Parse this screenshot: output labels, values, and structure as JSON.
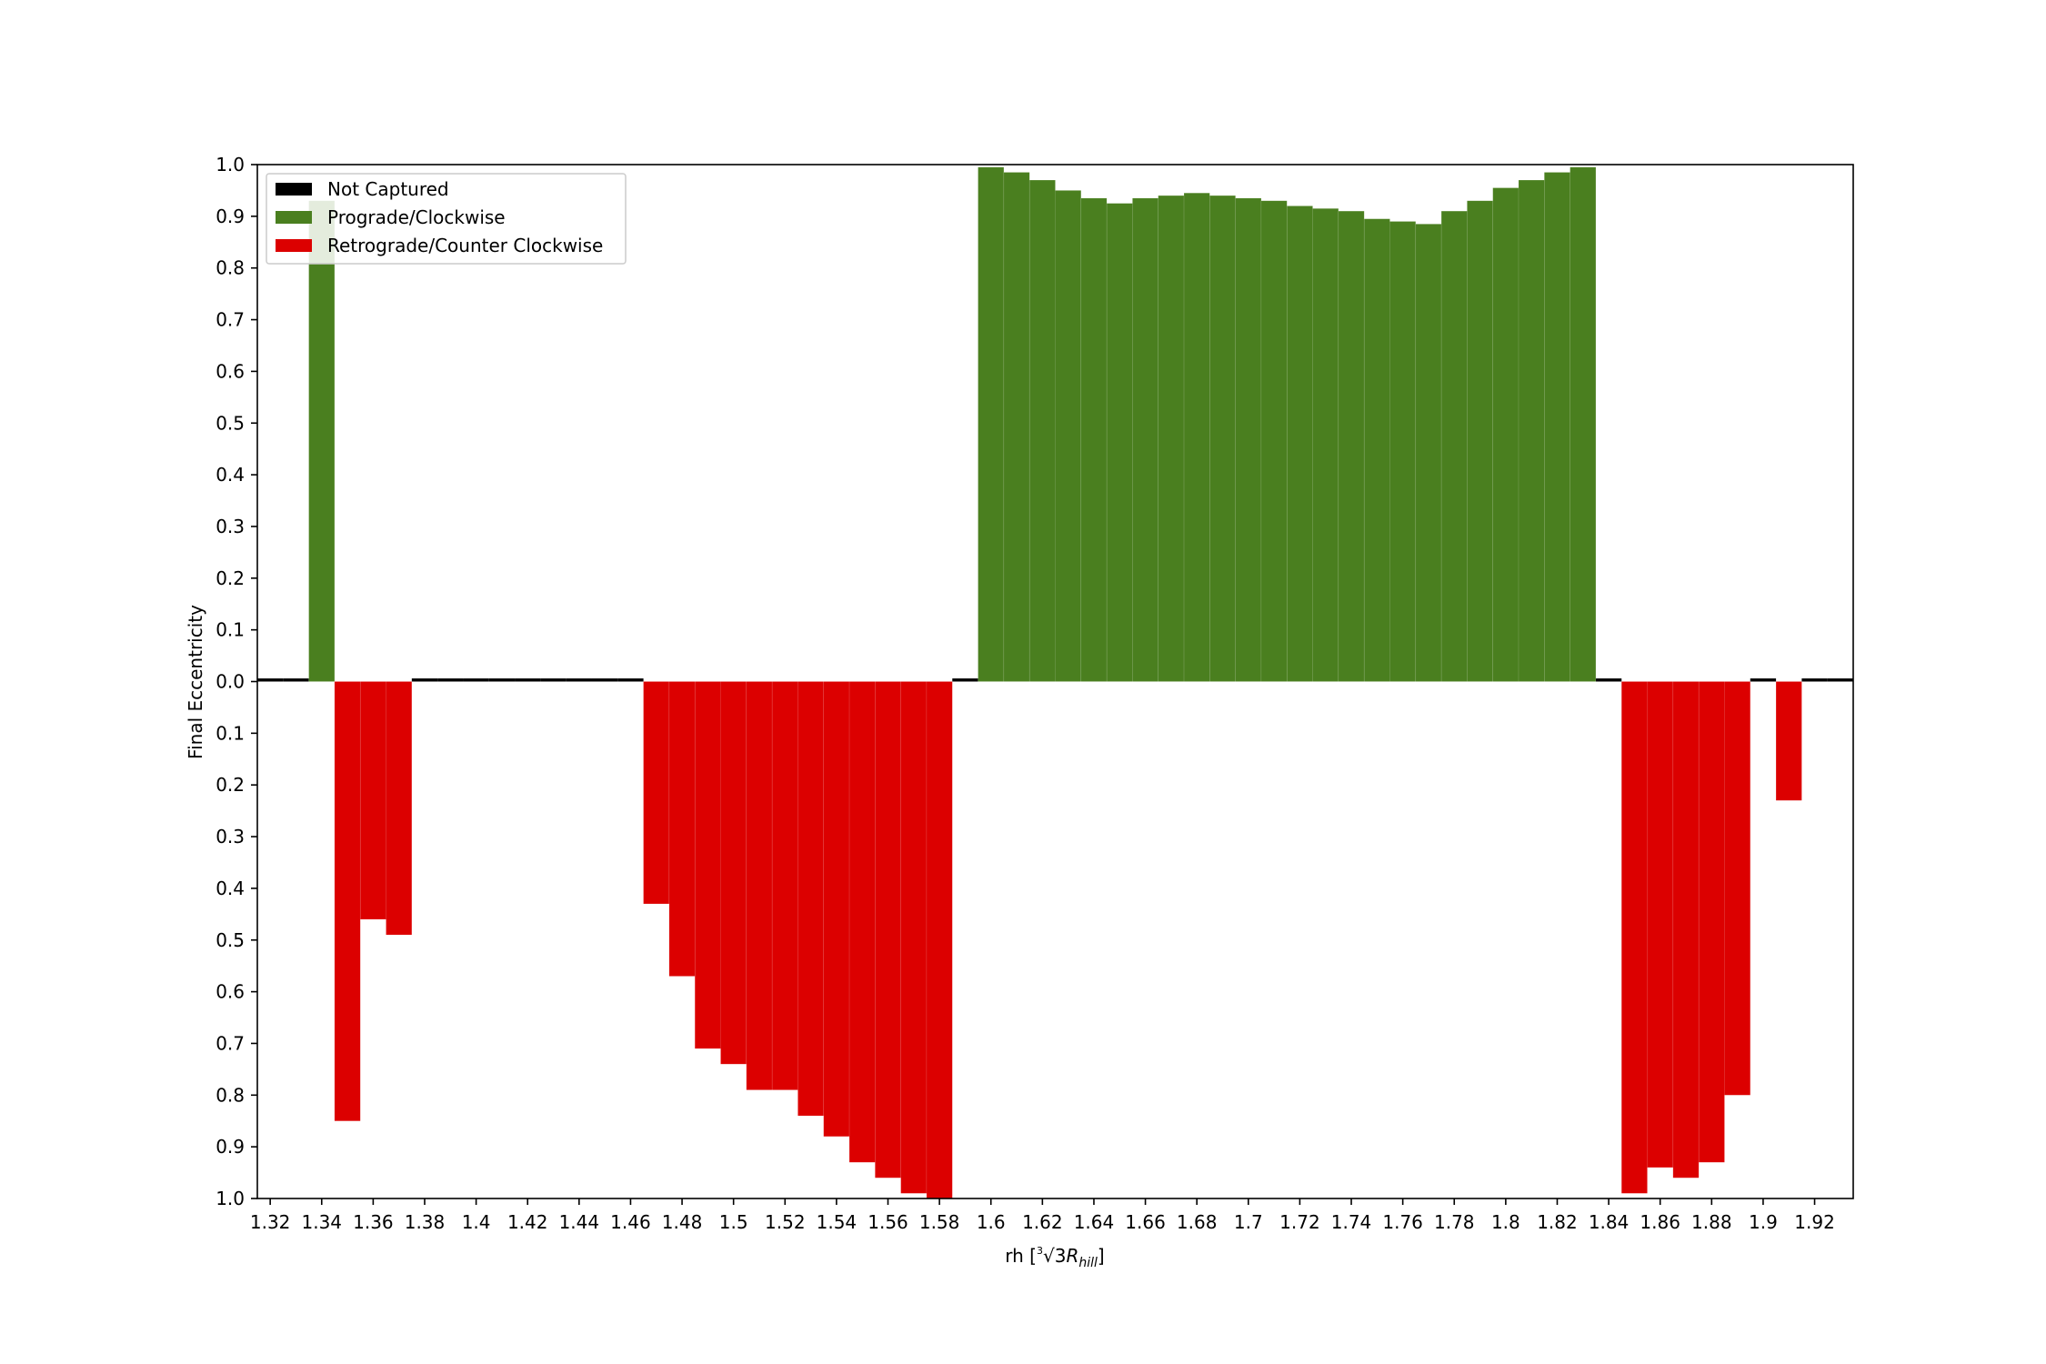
{
  "chart_data": {
    "type": "bar",
    "title": "",
    "xlabel_prefix": "rh [",
    "xlabel_root_index": "3",
    "xlabel_radical": "√",
    "xlabel_radicand": "3",
    "xlabel_var": "R",
    "xlabel_sub": "hill",
    "xlabel_suffix": "]",
    "ylabel": "Final Eccentricity",
    "xlim": [
      1.315,
      1.935
    ],
    "ylim": [
      -1.0,
      1.0
    ],
    "bar_width": 0.01,
    "x_ticks": [
      "1.32",
      "1.34",
      "1.36",
      "1.38",
      "1.4",
      "1.42",
      "1.44",
      "1.46",
      "1.48",
      "1.5",
      "1.52",
      "1.54",
      "1.56",
      "1.58",
      "1.6",
      "1.62",
      "1.64",
      "1.66",
      "1.68",
      "1.7",
      "1.72",
      "1.74",
      "1.76",
      "1.78",
      "1.8",
      "1.82",
      "1.84",
      "1.86",
      "1.88",
      "1.9",
      "1.92"
    ],
    "y_ticks": [
      {
        "value": 1.0,
        "label": "1.0"
      },
      {
        "value": 0.9,
        "label": "0.9"
      },
      {
        "value": 0.8,
        "label": "0.8"
      },
      {
        "value": 0.7,
        "label": "0.7"
      },
      {
        "value": 0.6,
        "label": "0.6"
      },
      {
        "value": 0.5,
        "label": "0.5"
      },
      {
        "value": 0.4,
        "label": "0.4"
      },
      {
        "value": 0.3,
        "label": "0.3"
      },
      {
        "value": 0.2,
        "label": "0.2"
      },
      {
        "value": 0.1,
        "label": "0.1"
      },
      {
        "value": 0.0,
        "label": "0.0"
      },
      {
        "value": -0.1,
        "label": "0.1"
      },
      {
        "value": -0.2,
        "label": "0.2"
      },
      {
        "value": -0.3,
        "label": "0.3"
      },
      {
        "value": -0.4,
        "label": "0.4"
      },
      {
        "value": -0.5,
        "label": "0.5"
      },
      {
        "value": -0.6,
        "label": "0.6"
      },
      {
        "value": -0.7,
        "label": "0.7"
      },
      {
        "value": -0.8,
        "label": "0.8"
      },
      {
        "value": -0.9,
        "label": "0.9"
      },
      {
        "value": -1.0,
        "label": "1.0"
      }
    ],
    "legend_position": "upper-left",
    "series": [
      {
        "name": "Not Captured",
        "color": "#000000",
        "x": [
          1.32,
          1.33,
          1.38,
          1.39,
          1.4,
          1.41,
          1.42,
          1.43,
          1.44,
          1.45,
          1.46,
          1.59,
          1.84,
          1.9,
          1.92,
          1.93
        ],
        "values": [
          0.006,
          0.006,
          0.006,
          0.006,
          0.006,
          0.006,
          0.006,
          0.006,
          0.006,
          0.006,
          0.006,
          0.006,
          0.006,
          0.006,
          0.006,
          0.006
        ]
      },
      {
        "name": "Prograde/Clockwise",
        "color": "#4a7f1f",
        "x": [
          1.34,
          1.6,
          1.61,
          1.62,
          1.63,
          1.64,
          1.65,
          1.66,
          1.67,
          1.68,
          1.69,
          1.7,
          1.71,
          1.72,
          1.73,
          1.74,
          1.75,
          1.76,
          1.77,
          1.78,
          1.79,
          1.8,
          1.81,
          1.82,
          1.83
        ],
        "values": [
          0.93,
          0.995,
          0.985,
          0.97,
          0.95,
          0.935,
          0.925,
          0.935,
          0.94,
          0.945,
          0.94,
          0.935,
          0.93,
          0.92,
          0.915,
          0.91,
          0.895,
          0.89,
          0.885,
          0.91,
          0.93,
          0.955,
          0.97,
          0.985,
          0.995
        ]
      },
      {
        "name": "Retrograde/Counter Clockwise",
        "color": "#dc0000",
        "x": [
          1.35,
          1.36,
          1.37,
          1.47,
          1.48,
          1.49,
          1.5,
          1.51,
          1.52,
          1.53,
          1.54,
          1.55,
          1.56,
          1.57,
          1.58,
          1.85,
          1.86,
          1.87,
          1.88,
          1.89,
          1.91
        ],
        "values": [
          -0.85,
          -0.46,
          -0.49,
          -0.43,
          -0.57,
          -0.71,
          -0.74,
          -0.79,
          -0.79,
          -0.84,
          -0.88,
          -0.93,
          -0.96,
          -0.99,
          -1.0,
          -0.99,
          -0.94,
          -0.96,
          -0.93,
          -0.8,
          -0.23
        ]
      }
    ]
  }
}
